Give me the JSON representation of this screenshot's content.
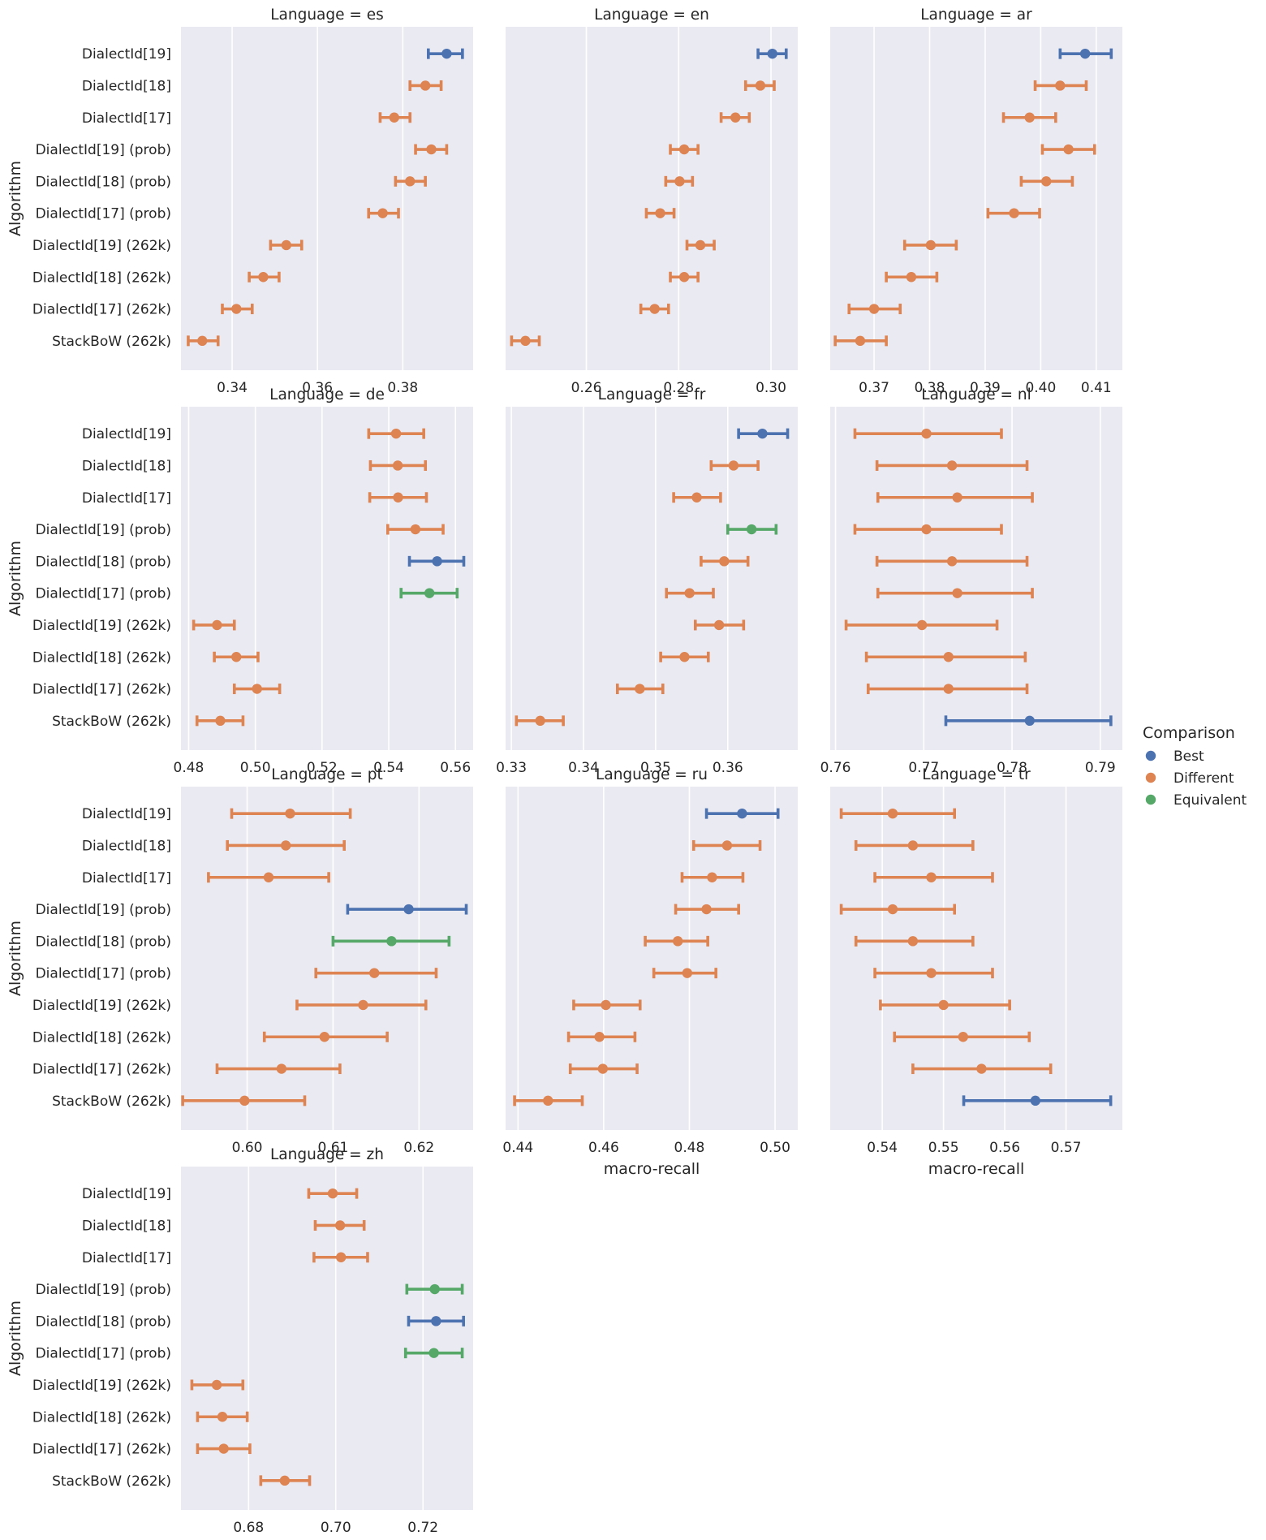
{
  "chart_data": {
    "type": "pointplot",
    "row_label": "Algorithm",
    "x_axis_label": "macro-recall",
    "title_prefix": "Language = ",
    "categories": [
      "DialectId[19]",
      "DialectId[18]",
      "DialectId[17]",
      "DialectId[19] (prob)",
      "DialectId[18] (prob)",
      "DialectId[17] (prob)",
      "DialectId[19] (262k)",
      "DialectId[18] (262k)",
      "DialectId[17] (262k)",
      "StackBoW (262k)"
    ],
    "legend": {
      "title": "Comparison",
      "entries": [
        {
          "label": "Best",
          "color": "#4c72b0"
        },
        {
          "label": "Different",
          "color": "#dd8452"
        },
        {
          "label": "Equivalent",
          "color": "#55a868"
        }
      ]
    },
    "panels": [
      {
        "language": "es",
        "xlim": [
          0.328,
          0.3965
        ],
        "xticks": [
          0.34,
          0.36,
          0.38
        ],
        "points": [
          {
            "v": 0.3903,
            "lo": 0.386,
            "hi": 0.394,
            "c": "Best"
          },
          {
            "v": 0.3853,
            "lo": 0.3817,
            "hi": 0.389,
            "c": "Different"
          },
          {
            "v": 0.378,
            "lo": 0.3747,
            "hi": 0.3817,
            "c": "Different"
          },
          {
            "v": 0.3867,
            "lo": 0.383,
            "hi": 0.3903,
            "c": "Different"
          },
          {
            "v": 0.3817,
            "lo": 0.3783,
            "hi": 0.3853,
            "c": "Different"
          },
          {
            "v": 0.3753,
            "lo": 0.372,
            "hi": 0.379,
            "c": "Different"
          },
          {
            "v": 0.3527,
            "lo": 0.349,
            "hi": 0.3563,
            "c": "Different"
          },
          {
            "v": 0.3473,
            "lo": 0.344,
            "hi": 0.351,
            "c": "Different"
          },
          {
            "v": 0.341,
            "lo": 0.3377,
            "hi": 0.3447,
            "c": "Different"
          },
          {
            "v": 0.333,
            "lo": 0.3297,
            "hi": 0.3367,
            "c": "Different"
          }
        ]
      },
      {
        "language": "en",
        "xlim": [
          0.2425,
          0.3058
        ],
        "xticks": [
          0.26,
          0.28,
          0.3
        ],
        "points": [
          {
            "v": 0.3003,
            "lo": 0.2972,
            "hi": 0.3033,
            "c": "Best"
          },
          {
            "v": 0.2977,
            "lo": 0.2945,
            "hi": 0.3007,
            "c": "Different"
          },
          {
            "v": 0.2923,
            "lo": 0.2892,
            "hi": 0.2953,
            "c": "Different"
          },
          {
            "v": 0.2812,
            "lo": 0.2782,
            "hi": 0.2842,
            "c": "Different"
          },
          {
            "v": 0.2802,
            "lo": 0.2772,
            "hi": 0.283,
            "c": "Different"
          },
          {
            "v": 0.276,
            "lo": 0.273,
            "hi": 0.279,
            "c": "Different"
          },
          {
            "v": 0.2847,
            "lo": 0.2818,
            "hi": 0.2877,
            "c": "Different"
          },
          {
            "v": 0.2812,
            "lo": 0.2782,
            "hi": 0.2842,
            "c": "Different"
          },
          {
            "v": 0.2748,
            "lo": 0.2718,
            "hi": 0.2778,
            "c": "Different"
          },
          {
            "v": 0.2468,
            "lo": 0.2438,
            "hi": 0.2498,
            "c": "Different"
          }
        ]
      },
      {
        "language": "ar",
        "xlim": [
          0.3621,
          0.4147
        ],
        "xticks": [
          0.37,
          0.38,
          0.39,
          0.4,
          0.41
        ],
        "points": [
          {
            "v": 0.408,
            "lo": 0.4035,
            "hi": 0.4127,
            "c": "Best"
          },
          {
            "v": 0.4035,
            "lo": 0.399,
            "hi": 0.4082,
            "c": "Different"
          },
          {
            "v": 0.398,
            "lo": 0.3933,
            "hi": 0.4027,
            "c": "Different"
          },
          {
            "v": 0.405,
            "lo": 0.4003,
            "hi": 0.4097,
            "c": "Different"
          },
          {
            "v": 0.401,
            "lo": 0.3965,
            "hi": 0.4057,
            "c": "Different"
          },
          {
            "v": 0.3952,
            "lo": 0.3905,
            "hi": 0.3998,
            "c": "Different"
          },
          {
            "v": 0.3802,
            "lo": 0.3755,
            "hi": 0.3848,
            "c": "Different"
          },
          {
            "v": 0.3767,
            "lo": 0.3722,
            "hi": 0.3813,
            "c": "Different"
          },
          {
            "v": 0.37,
            "lo": 0.3655,
            "hi": 0.3747,
            "c": "Different"
          },
          {
            "v": 0.3675,
            "lo": 0.363,
            "hi": 0.3722,
            "c": "Different"
          }
        ]
      },
      {
        "language": "de",
        "xlim": [
          0.4777,
          0.5653
        ],
        "xticks": [
          0.48,
          0.5,
          0.52,
          0.54,
          0.56
        ],
        "points": [
          {
            "v": 0.5422,
            "lo": 0.534,
            "hi": 0.5505,
            "c": "Different"
          },
          {
            "v": 0.5427,
            "lo": 0.5345,
            "hi": 0.551,
            "c": "Different"
          },
          {
            "v": 0.5428,
            "lo": 0.5343,
            "hi": 0.5513,
            "c": "Different"
          },
          {
            "v": 0.548,
            "lo": 0.5397,
            "hi": 0.5563,
            "c": "Different"
          },
          {
            "v": 0.5545,
            "lo": 0.5462,
            "hi": 0.5625,
            "c": "Best"
          },
          {
            "v": 0.5522,
            "lo": 0.5437,
            "hi": 0.5605,
            "c": "Equivalent"
          },
          {
            "v": 0.4885,
            "lo": 0.4815,
            "hi": 0.4937,
            "c": "Different"
          },
          {
            "v": 0.4943,
            "lo": 0.4877,
            "hi": 0.5008,
            "c": "Different"
          },
          {
            "v": 0.5005,
            "lo": 0.4937,
            "hi": 0.5073,
            "c": "Different"
          },
          {
            "v": 0.4895,
            "lo": 0.4825,
            "hi": 0.4963,
            "c": "Different"
          }
        ]
      },
      {
        "language": "fr",
        "xlim": [
          0.3292,
          0.3697
        ],
        "xticks": [
          0.33,
          0.34,
          0.35,
          0.36
        ],
        "points": [
          {
            "v": 0.3648,
            "lo": 0.3615,
            "hi": 0.3683,
            "c": "Best"
          },
          {
            "v": 0.3608,
            "lo": 0.3577,
            "hi": 0.3642,
            "c": "Different"
          },
          {
            "v": 0.3557,
            "lo": 0.3525,
            "hi": 0.359,
            "c": "Different"
          },
          {
            "v": 0.3633,
            "lo": 0.36,
            "hi": 0.3667,
            "c": "Equivalent"
          },
          {
            "v": 0.3595,
            "lo": 0.3563,
            "hi": 0.3628,
            "c": "Different"
          },
          {
            "v": 0.3547,
            "lo": 0.3515,
            "hi": 0.358,
            "c": "Different"
          },
          {
            "v": 0.3588,
            "lo": 0.3555,
            "hi": 0.3622,
            "c": "Different"
          },
          {
            "v": 0.354,
            "lo": 0.3507,
            "hi": 0.3573,
            "c": "Different"
          },
          {
            "v": 0.3478,
            "lo": 0.3447,
            "hi": 0.351,
            "c": "Different"
          },
          {
            "v": 0.334,
            "lo": 0.3307,
            "hi": 0.3372,
            "c": "Different"
          }
        ]
      },
      {
        "language": "nl",
        "xlim": [
          0.7594,
          0.7925
        ],
        "xticks": [
          0.76,
          0.77,
          0.78,
          0.79
        ],
        "points": [
          {
            "v": 0.7703,
            "lo": 0.7622,
            "hi": 0.7788,
            "c": "Different"
          },
          {
            "v": 0.7732,
            "lo": 0.7647,
            "hi": 0.7817,
            "c": "Different"
          },
          {
            "v": 0.7738,
            "lo": 0.7648,
            "hi": 0.7823,
            "c": "Different"
          },
          {
            "v": 0.7703,
            "lo": 0.7622,
            "hi": 0.7788,
            "c": "Different"
          },
          {
            "v": 0.7732,
            "lo": 0.7647,
            "hi": 0.7817,
            "c": "Different"
          },
          {
            "v": 0.7738,
            "lo": 0.7648,
            "hi": 0.7823,
            "c": "Different"
          },
          {
            "v": 0.7698,
            "lo": 0.7612,
            "hi": 0.7783,
            "c": "Different"
          },
          {
            "v": 0.7728,
            "lo": 0.7635,
            "hi": 0.7815,
            "c": "Different"
          },
          {
            "v": 0.7728,
            "lo": 0.7637,
            "hi": 0.7817,
            "c": "Different"
          },
          {
            "v": 0.782,
            "lo": 0.7725,
            "hi": 0.7912,
            "c": "Best"
          }
        ]
      },
      {
        "language": "pt",
        "xlim": [
          0.5923,
          0.6263
        ],
        "xticks": [
          0.6,
          0.61,
          0.62
        ],
        "points": [
          {
            "v": 0.605,
            "lo": 0.5982,
            "hi": 0.612,
            "c": "Different"
          },
          {
            "v": 0.6045,
            "lo": 0.5977,
            "hi": 0.6113,
            "c": "Different"
          },
          {
            "v": 0.6025,
            "lo": 0.5955,
            "hi": 0.6095,
            "c": "Different"
          },
          {
            "v": 0.6188,
            "lo": 0.6117,
            "hi": 0.6255,
            "c": "Best"
          },
          {
            "v": 0.6168,
            "lo": 0.61,
            "hi": 0.6235,
            "c": "Equivalent"
          },
          {
            "v": 0.6148,
            "lo": 0.608,
            "hi": 0.622,
            "c": "Different"
          },
          {
            "v": 0.6135,
            "lo": 0.6058,
            "hi": 0.6208,
            "c": "Different"
          },
          {
            "v": 0.609,
            "lo": 0.602,
            "hi": 0.6163,
            "c": "Different"
          },
          {
            "v": 0.604,
            "lo": 0.5965,
            "hi": 0.6108,
            "c": "Different"
          },
          {
            "v": 0.5997,
            "lo": 0.5925,
            "hi": 0.6067,
            "c": "Different"
          }
        ]
      },
      {
        "language": "ru",
        "xlim": [
          0.4371,
          0.5053
        ],
        "xticks": [
          0.44,
          0.46,
          0.48,
          0.5
        ],
        "points": [
          {
            "v": 0.4923,
            "lo": 0.484,
            "hi": 0.5007,
            "c": "Best"
          },
          {
            "v": 0.4888,
            "lo": 0.481,
            "hi": 0.4965,
            "c": "Different"
          },
          {
            "v": 0.4853,
            "lo": 0.4783,
            "hi": 0.4925,
            "c": "Different"
          },
          {
            "v": 0.484,
            "lo": 0.4768,
            "hi": 0.4915,
            "c": "Different"
          },
          {
            "v": 0.4773,
            "lo": 0.4697,
            "hi": 0.4843,
            "c": "Different"
          },
          {
            "v": 0.4795,
            "lo": 0.4717,
            "hi": 0.4862,
            "c": "Different"
          },
          {
            "v": 0.4605,
            "lo": 0.453,
            "hi": 0.4685,
            "c": "Different"
          },
          {
            "v": 0.459,
            "lo": 0.4518,
            "hi": 0.4673,
            "c": "Different"
          },
          {
            "v": 0.4598,
            "lo": 0.4522,
            "hi": 0.4678,
            "c": "Different"
          },
          {
            "v": 0.447,
            "lo": 0.4392,
            "hi": 0.455,
            "c": "Different"
          }
        ]
      },
      {
        "language": "tr",
        "xlim": [
          0.5315,
          0.5792
        ],
        "xticks": [
          0.54,
          0.55,
          0.56,
          0.57
        ],
        "points": [
          {
            "v": 0.5417,
            "lo": 0.5333,
            "hi": 0.5518,
            "c": "Different"
          },
          {
            "v": 0.545,
            "lo": 0.5357,
            "hi": 0.5548,
            "c": "Different"
          },
          {
            "v": 0.548,
            "lo": 0.5388,
            "hi": 0.558,
            "c": "Different"
          },
          {
            "v": 0.5417,
            "lo": 0.5333,
            "hi": 0.5518,
            "c": "Different"
          },
          {
            "v": 0.545,
            "lo": 0.5357,
            "hi": 0.5548,
            "c": "Different"
          },
          {
            "v": 0.548,
            "lo": 0.5388,
            "hi": 0.558,
            "c": "Different"
          },
          {
            "v": 0.55,
            "lo": 0.5397,
            "hi": 0.5608,
            "c": "Different"
          },
          {
            "v": 0.5532,
            "lo": 0.542,
            "hi": 0.564,
            "c": "Different"
          },
          {
            "v": 0.5562,
            "lo": 0.545,
            "hi": 0.5675,
            "c": "Different"
          },
          {
            "v": 0.565,
            "lo": 0.5533,
            "hi": 0.5773,
            "c": "Best"
          }
        ]
      },
      {
        "language": "zh",
        "xlim": [
          0.6645,
          0.7315
        ],
        "xticks": [
          0.68,
          0.7,
          0.72
        ],
        "points": [
          {
            "v": 0.6993,
            "lo": 0.6938,
            "hi": 0.7048,
            "c": "Different"
          },
          {
            "v": 0.701,
            "lo": 0.6953,
            "hi": 0.7065,
            "c": "Different"
          },
          {
            "v": 0.7012,
            "lo": 0.695,
            "hi": 0.7073,
            "c": "Different"
          },
          {
            "v": 0.7227,
            "lo": 0.7163,
            "hi": 0.729,
            "c": "Equivalent"
          },
          {
            "v": 0.723,
            "lo": 0.7167,
            "hi": 0.7293,
            "c": "Best"
          },
          {
            "v": 0.7225,
            "lo": 0.716,
            "hi": 0.729,
            "c": "Equivalent"
          },
          {
            "v": 0.6727,
            "lo": 0.667,
            "hi": 0.6787,
            "c": "Different"
          },
          {
            "v": 0.674,
            "lo": 0.6683,
            "hi": 0.6797,
            "c": "Different"
          },
          {
            "v": 0.6743,
            "lo": 0.6683,
            "hi": 0.6803,
            "c": "Different"
          },
          {
            "v": 0.6883,
            "lo": 0.6828,
            "hi": 0.694,
            "c": "Different"
          }
        ]
      }
    ]
  }
}
